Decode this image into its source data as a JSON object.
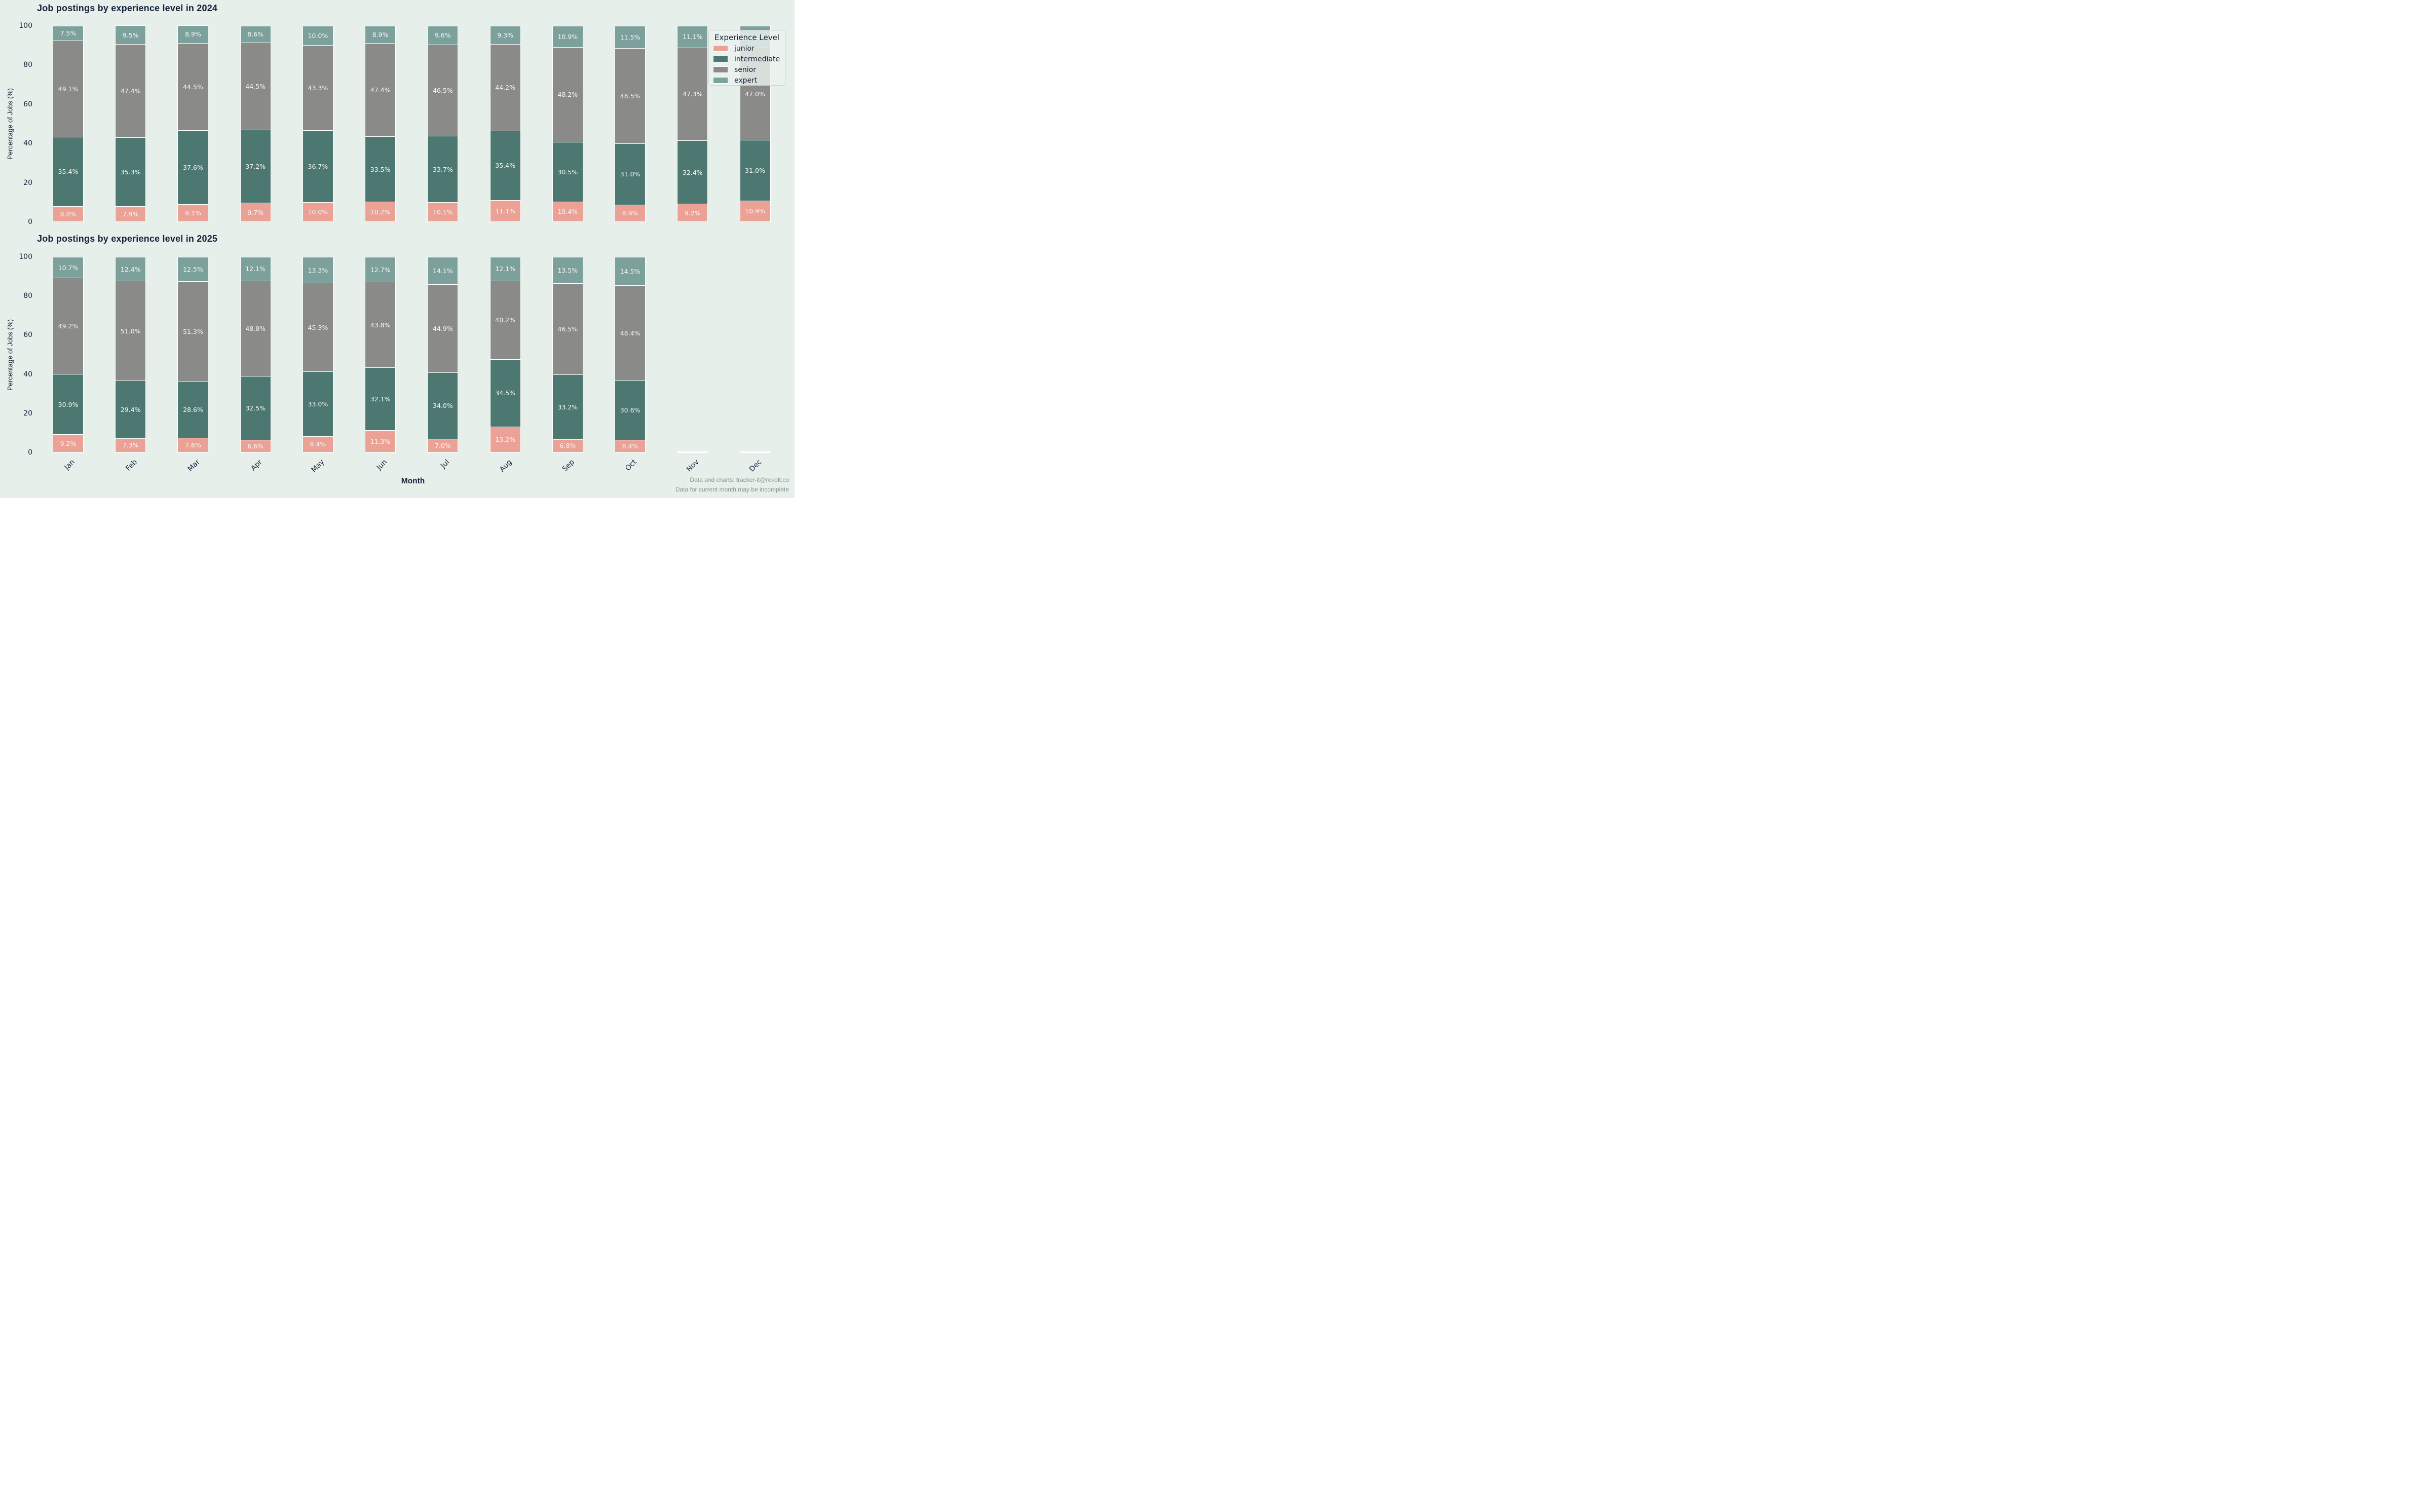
{
  "figure": {
    "background_color": "#e7efeb",
    "text_color": "#14233a",
    "muted_text_color": "#8b928f"
  },
  "xlabel": "Month",
  "legend": {
    "title": "Experience Level",
    "items": [
      {
        "label": "junior",
        "color": "#eba195"
      },
      {
        "label": "intermediate",
        "color": "#4d7872"
      },
      {
        "label": "senior",
        "color": "#8a8a88"
      },
      {
        "label": "expert",
        "color": "#7ca09c"
      }
    ]
  },
  "footer": {
    "line1": "Data and charts: tracker-it@rekolt.co",
    "line2": "Data for current month may be incomplete"
  },
  "chart_data": [
    {
      "type": "bar",
      "stacked": true,
      "title": "Job postings by experience level in 2024",
      "xlabel": "Month",
      "ylabel": "Percentage of Jobs (%)",
      "ylim": [
        0,
        100
      ],
      "yticks": [
        0,
        20,
        40,
        60,
        80,
        100
      ],
      "grid": false,
      "legend_position": "upper right",
      "value_label_format": "{v}%",
      "categories": [
        "Jan",
        "Feb",
        "Mar",
        "Apr",
        "May",
        "Jun",
        "Jul",
        "Aug",
        "Sep",
        "Oct",
        "Nov",
        "Dec"
      ],
      "series": [
        {
          "name": "junior",
          "color": "#eba195",
          "values": [
            8.0,
            7.9,
            9.1,
            9.7,
            10.0,
            10.2,
            10.1,
            11.1,
            10.4,
            8.9,
            9.2,
            10.9
          ]
        },
        {
          "name": "intermediate",
          "color": "#4d7872",
          "values": [
            35.4,
            35.3,
            37.6,
            37.2,
            36.7,
            33.5,
            33.7,
            35.4,
            30.5,
            31.0,
            32.4,
            31.0
          ]
        },
        {
          "name": "senior",
          "color": "#8a8a88",
          "values": [
            49.1,
            47.4,
            44.5,
            44.5,
            43.3,
            47.4,
            46.5,
            44.2,
            48.2,
            48.5,
            47.3,
            47.0
          ]
        },
        {
          "name": "expert",
          "color": "#7ca09c",
          "values": [
            7.5,
            9.5,
            8.9,
            8.6,
            10.0,
            8.9,
            9.6,
            9.3,
            10.9,
            11.5,
            11.1,
            11.1
          ]
        }
      ]
    },
    {
      "type": "bar",
      "stacked": true,
      "title": "Job postings by experience level in 2025",
      "xlabel": "Month",
      "ylabel": "Percentage of Jobs (%)",
      "ylim": [
        0,
        100
      ],
      "yticks": [
        0,
        20,
        40,
        60,
        80,
        100
      ],
      "grid": false,
      "value_label_format": "{v}%",
      "categories": [
        "Jan",
        "Feb",
        "Mar",
        "Apr",
        "May",
        "Jun",
        "Jul",
        "Aug",
        "Sep",
        "Oct",
        "Nov",
        "Dec"
      ],
      "series": [
        {
          "name": "junior",
          "color": "#eba195",
          "values": [
            9.2,
            7.3,
            7.6,
            6.6,
            8.4,
            11.3,
            7.0,
            13.2,
            6.8,
            6.4,
            null,
            null
          ]
        },
        {
          "name": "intermediate",
          "color": "#4d7872",
          "values": [
            30.9,
            29.4,
            28.6,
            32.5,
            33.0,
            32.1,
            34.0,
            34.5,
            33.2,
            30.6,
            null,
            null
          ]
        },
        {
          "name": "senior",
          "color": "#8a8a88",
          "values": [
            49.2,
            51.0,
            51.3,
            48.8,
            45.3,
            43.8,
            44.9,
            40.2,
            46.5,
            48.4,
            null,
            null
          ]
        },
        {
          "name": "expert",
          "color": "#7ca09c",
          "values": [
            10.7,
            12.4,
            12.5,
            12.1,
            13.3,
            12.7,
            14.1,
            12.1,
            13.5,
            14.5,
            null,
            null
          ]
        }
      ]
    }
  ]
}
